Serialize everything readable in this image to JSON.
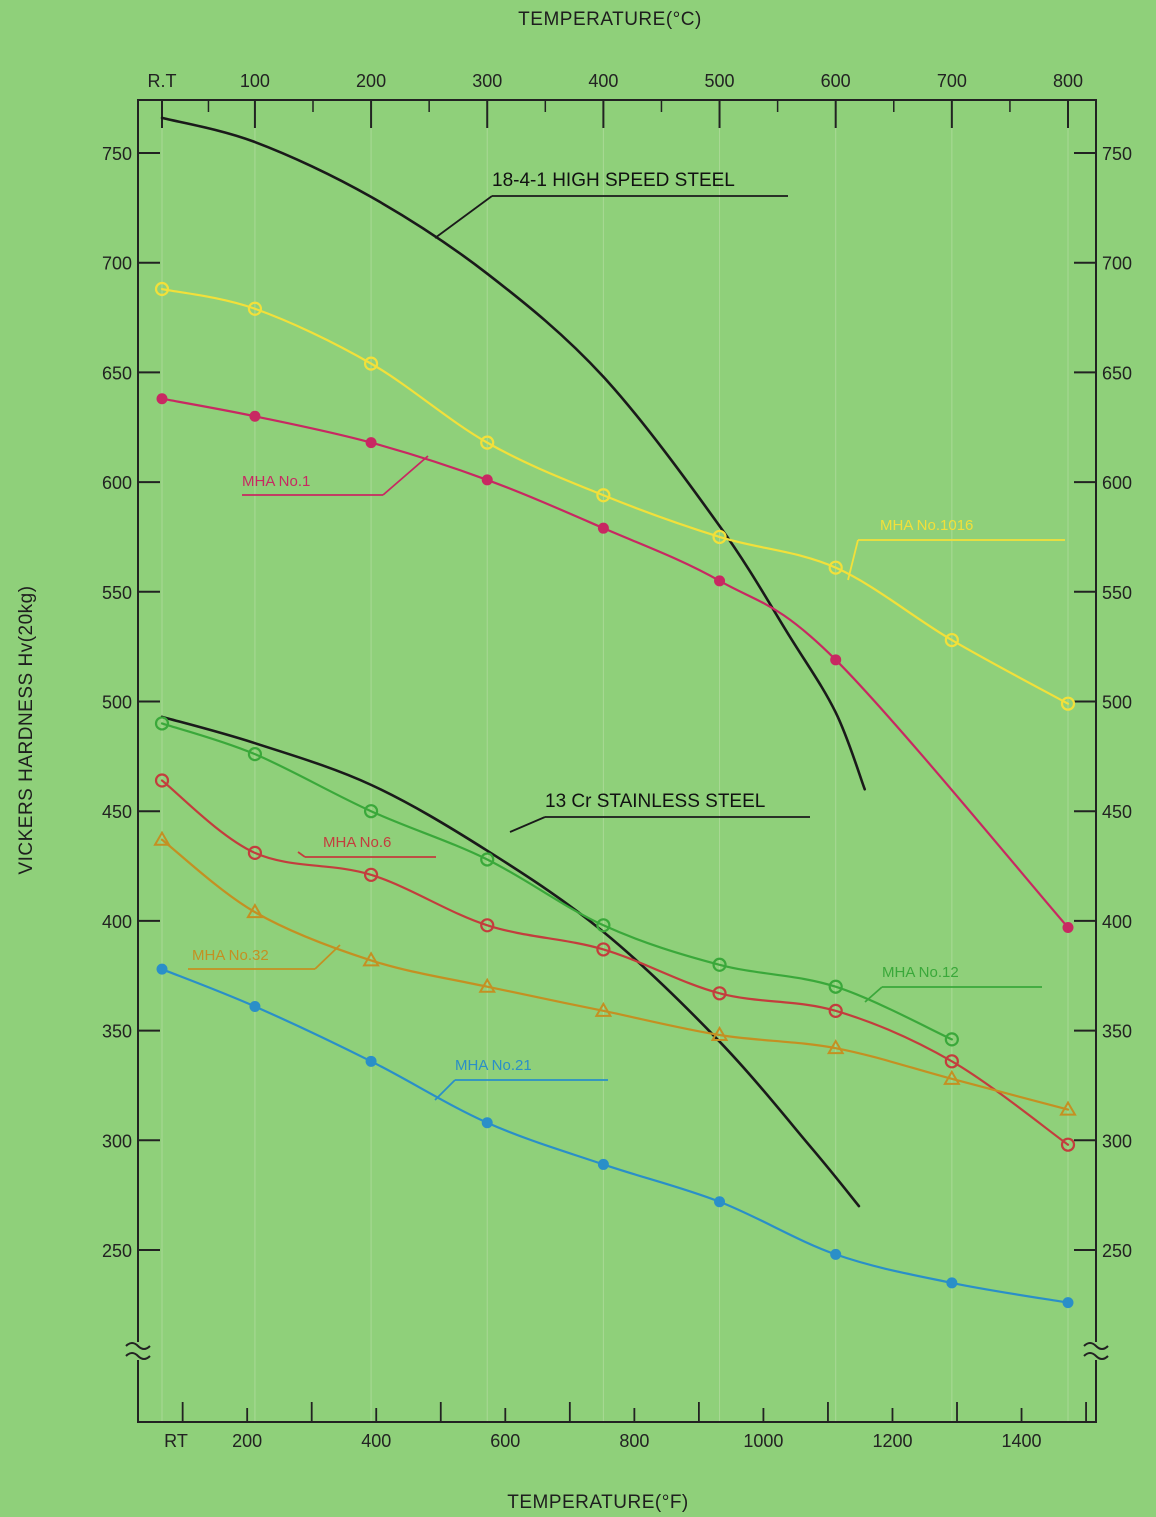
{
  "chart_data": {
    "type": "line",
    "top_axis": {
      "label": "TEMPERATURE(°C)",
      "ticks": [
        "R.T",
        "100",
        "200",
        "300",
        "400",
        "500",
        "600",
        "700",
        "800"
      ]
    },
    "bottom_axis": {
      "label": "TEMPERATURE(°F)",
      "ticks": [
        "RT",
        "200",
        "400",
        "600",
        "800",
        "1000",
        "1200",
        "1400"
      ]
    },
    "ylabel": "VICKERS HARDNESS Hv(20kg)",
    "y_ticks": [
      "750",
      "700",
      "650",
      "600",
      "550",
      "500",
      "450",
      "400",
      "350",
      "300",
      "250"
    ],
    "x_unit": "°C",
    "xlim": [
      20,
      800
    ],
    "ylim": [
      200,
      750
    ],
    "y_axis_break": true,
    "series": [
      {
        "name": "18-4-1 HIGH SPEED STEEL",
        "color": "#1a1a1a",
        "marker": "none",
        "x": [
          20,
          100,
          200,
          300,
          400,
          500,
          560,
          600,
          625
        ],
        "values": [
          766,
          755,
          730,
          695,
          648,
          580,
          530,
          495,
          460
        ]
      },
      {
        "name": "MHA No.1016",
        "color": "#f2e03a",
        "marker": "open-circle",
        "x": [
          20,
          100,
          200,
          300,
          400,
          500,
          600,
          700,
          800
        ],
        "values": [
          688,
          679,
          654,
          618,
          594,
          575,
          561,
          528,
          499
        ]
      },
      {
        "name": "MHA No.1",
        "color": "#c82862",
        "marker": "filled-circle",
        "x": [
          20,
          100,
          200,
          300,
          400,
          500,
          600,
          800
        ],
        "values": [
          638,
          630,
          618,
          601,
          579,
          555,
          519,
          397
        ]
      },
      {
        "name": "13 Cr STAINLESS STEEL",
        "color": "#1a1a1a",
        "marker": "none",
        "x": [
          20,
          100,
          200,
          300,
          400,
          500,
          580,
          620
        ],
        "values": [
          493,
          481,
          462,
          432,
          395,
          345,
          296,
          270
        ]
      },
      {
        "name": "MHA No.12",
        "color": "#3aa83a",
        "marker": "open-circle",
        "x": [
          20,
          100,
          200,
          300,
          400,
          500,
          600,
          700
        ],
        "values": [
          490,
          476,
          450,
          428,
          398,
          380,
          370,
          346
        ]
      },
      {
        "name": "MHA No.6",
        "color": "#c33d3d",
        "marker": "open-circle",
        "x": [
          20,
          100,
          200,
          300,
          400,
          500,
          600,
          700,
          800
        ],
        "values": [
          464,
          431,
          421,
          398,
          387,
          367,
          359,
          336,
          298
        ]
      },
      {
        "name": "MHA No.32",
        "color": "#c49022",
        "marker": "open-triangle",
        "x": [
          20,
          100,
          200,
          300,
          400,
          500,
          600,
          700,
          800
        ],
        "values": [
          437,
          404,
          382,
          370,
          359,
          348,
          342,
          328,
          314
        ]
      },
      {
        "name": "MHA No.21",
        "color": "#2a8fc8",
        "marker": "filled-circle",
        "x": [
          20,
          100,
          200,
          300,
          400,
          500,
          600,
          700,
          800
        ],
        "values": [
          378,
          361,
          336,
          308,
          289,
          272,
          248,
          235,
          226
        ]
      }
    ]
  }
}
